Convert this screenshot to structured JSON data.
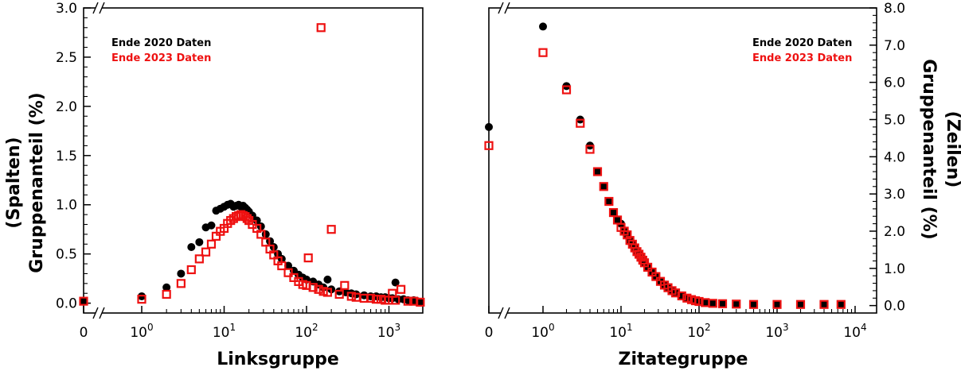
{
  "chart_data": [
    {
      "type": "scatter",
      "xlabel": "Linksgruppe",
      "ylabel_lines": [
        "(Spalten)",
        "Gruppenanteil (%)"
      ],
      "xscale": "log with broken axis at 0",
      "x_ticks": [
        0,
        1,
        10,
        100,
        1000
      ],
      "x_tick_labels": [
        "0",
        "10",
        "10",
        "10",
        "10"
      ],
      "x_tick_exponents": [
        "",
        "0",
        "1",
        "2",
        "3"
      ],
      "ylim": [
        -0.1,
        3.0
      ],
      "y_ticks": [
        0.0,
        0.5,
        1.0,
        1.5,
        2.0,
        2.5,
        3.0
      ],
      "y_tick_labels": [
        "0.0",
        "0.5",
        "1.0",
        "1.5",
        "2.0",
        "2.5",
        "3.0"
      ],
      "legend_position": "top-left",
      "series": [
        {
          "name": "Ende 2020 Daten",
          "marker": "filled-circle",
          "color": "#000000",
          "x": [
            0,
            1,
            2,
            3,
            4,
            5,
            6,
            7,
            8,
            9,
            10,
            11,
            12,
            13,
            14,
            15,
            16,
            17,
            18,
            19,
            20,
            22,
            25,
            28,
            32,
            36,
            40,
            45,
            50,
            60,
            70,
            80,
            90,
            100,
            120,
            140,
            160,
            180,
            200,
            250,
            300,
            350,
            400,
            500,
            600,
            700,
            800,
            900,
            1000,
            1100,
            1200,
            1300,
            1500,
            1700,
            2000,
            2200,
            2400
          ],
          "y": [
            0.02,
            0.07,
            0.16,
            0.3,
            0.57,
            0.62,
            0.77,
            0.79,
            0.94,
            0.96,
            0.98,
            1.0,
            1.01,
            0.98,
            0.99,
            1.0,
            0.98,
            0.99,
            0.97,
            0.95,
            0.93,
            0.89,
            0.84,
            0.78,
            0.7,
            0.63,
            0.57,
            0.5,
            0.45,
            0.38,
            0.33,
            0.29,
            0.26,
            0.24,
            0.22,
            0.19,
            0.16,
            0.24,
            0.14,
            0.12,
            0.11,
            0.1,
            0.09,
            0.08,
            0.07,
            0.07,
            0.06,
            0.06,
            0.05,
            0.05,
            0.21,
            0.04,
            0.04,
            0.03,
            0.03,
            0.02,
            0.01
          ]
        },
        {
          "name": "Ende 2023 Daten",
          "marker": "open-square",
          "color": "#ee1111",
          "x": [
            0,
            1,
            2,
            3,
            4,
            5,
            6,
            7,
            8,
            9,
            10,
            11,
            12,
            13,
            14,
            15,
            16,
            17,
            18,
            19,
            20,
            22,
            25,
            28,
            32,
            36,
            40,
            45,
            50,
            60,
            70,
            80,
            90,
            100,
            105,
            120,
            140,
            150,
            160,
            180,
            200,
            250,
            290,
            350,
            400,
            500,
            600,
            700,
            800,
            900,
            1000,
            1100,
            1200,
            1400,
            1700,
            2000,
            2400
          ],
          "y": [
            0.02,
            0.04,
            0.09,
            0.2,
            0.34,
            0.45,
            0.52,
            0.6,
            0.68,
            0.73,
            0.76,
            0.81,
            0.84,
            0.86,
            0.88,
            0.89,
            0.9,
            0.89,
            0.88,
            0.86,
            0.84,
            0.8,
            0.76,
            0.7,
            0.62,
            0.55,
            0.49,
            0.43,
            0.38,
            0.31,
            0.26,
            0.22,
            0.19,
            0.18,
            0.46,
            0.16,
            0.14,
            2.8,
            0.12,
            0.11,
            0.75,
            0.09,
            0.18,
            0.07,
            0.06,
            0.05,
            0.05,
            0.04,
            0.04,
            0.03,
            0.03,
            0.1,
            0.03,
            0.14,
            0.02,
            0.02,
            0.01
          ]
        }
      ]
    },
    {
      "type": "scatter",
      "xlabel": "Zitategruppe",
      "ylabel_lines": [
        "(Zeilen)",
        "Gruppenanteil (%)"
      ],
      "xscale": "log with broken axis at 0",
      "x_ticks": [
        0,
        1,
        10,
        100,
        1000,
        10000
      ],
      "x_tick_labels": [
        "0",
        "10",
        "10",
        "10",
        "10",
        "10"
      ],
      "x_tick_exponents": [
        "",
        "0",
        "1",
        "2",
        "3",
        "4"
      ],
      "ylim": [
        -0.2,
        8.0
      ],
      "y_ticks": [
        0.0,
        1.0,
        2.0,
        3.0,
        4.0,
        5.0,
        6.0,
        7.0,
        8.0
      ],
      "y_tick_labels": [
        "0.0",
        "1.0",
        "2.0",
        "3.0",
        "4.0",
        "5.0",
        "6.0",
        "7.0",
        "8.0"
      ],
      "y_axis_side": "right",
      "legend_position": "top-right",
      "series": [
        {
          "name": "Ende 2020 Daten",
          "marker": "filled-circle",
          "color": "#000000",
          "x": [
            0,
            1,
            2,
            3,
            4,
            5,
            6,
            7,
            8,
            9,
            10,
            11,
            12,
            13,
            14,
            15,
            16,
            17,
            18,
            19,
            20,
            22,
            25,
            28,
            32,
            36,
            40,
            45,
            50,
            60,
            70,
            80,
            90,
            100,
            120,
            150,
            200,
            300,
            500,
            1000,
            2000,
            4000,
            6600
          ],
          "y": [
            4.8,
            7.5,
            5.9,
            5.0,
            4.3,
            3.6,
            3.2,
            2.8,
            2.5,
            2.3,
            2.2,
            2.0,
            1.9,
            1.75,
            1.65,
            1.55,
            1.45,
            1.38,
            1.3,
            1.22,
            1.15,
            1.03,
            0.9,
            0.78,
            0.65,
            0.55,
            0.48,
            0.4,
            0.34,
            0.26,
            0.2,
            0.16,
            0.13,
            0.11,
            0.08,
            0.06,
            0.05,
            0.04,
            0.03,
            0.03,
            0.03,
            0.03,
            0.03
          ]
        },
        {
          "name": "Ende 2023 Daten",
          "marker": "open-square",
          "color": "#ee1111",
          "x": [
            0,
            1,
            2,
            3,
            4,
            5,
            6,
            7,
            8,
            9,
            10,
            11,
            12,
            13,
            14,
            15,
            16,
            17,
            18,
            19,
            20,
            22,
            25,
            28,
            32,
            36,
            40,
            45,
            50,
            60,
            70,
            80,
            90,
            100,
            120,
            150,
            200,
            300,
            500,
            1000,
            2000,
            4000,
            6600
          ],
          "y": [
            4.3,
            6.8,
            5.8,
            4.9,
            4.2,
            3.6,
            3.2,
            2.8,
            2.5,
            2.3,
            2.1,
            2.0,
            1.9,
            1.75,
            1.65,
            1.55,
            1.45,
            1.38,
            1.3,
            1.22,
            1.15,
            1.03,
            0.9,
            0.78,
            0.65,
            0.55,
            0.48,
            0.4,
            0.34,
            0.26,
            0.2,
            0.16,
            0.13,
            0.11,
            0.08,
            0.06,
            0.05,
            0.04,
            0.03,
            0.03,
            0.03,
            0.03,
            0.03
          ]
        }
      ]
    }
  ]
}
